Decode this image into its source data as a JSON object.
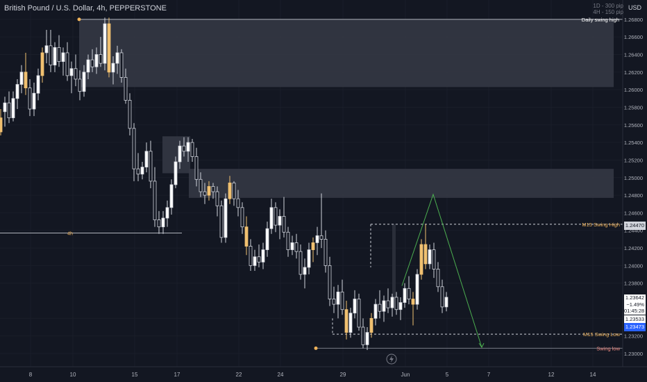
{
  "title": "British Pound / U.S. Dollar, 4h, PEPPERSTONE",
  "timeframe_note": {
    "daily": "1D - 300 pip",
    "h4": "4H - 150 pip"
  },
  "currency": "USD",
  "price_box": {
    "price": "1.23642",
    "change": "−1.49%",
    "countdown": "01:45:28"
  },
  "tags": {
    "m15_high": "1.24470",
    "low_value": "1.23533",
    "blue": "1.23473"
  },
  "colors": {
    "background": "#131722",
    "bull_candle": "#ffffff",
    "bear_candle": "#131722",
    "highlight_candle": "#f0c070",
    "zone": "#363a45",
    "projection": "#4caf50",
    "blue_tag": "#2962ff",
    "orange_label": "#f0b35a"
  },
  "chart_data": {
    "type": "candlestick",
    "y_axis": {
      "min": 1.2285,
      "max": 1.2702,
      "ticks": [
        "1.26800",
        "1.26600",
        "1.26400",
        "1.26200",
        "1.26000",
        "1.25800",
        "1.25600",
        "1.25400",
        "1.25200",
        "1.25000",
        "1.24800",
        "1.24600",
        "1.24400",
        "1.24200",
        "1.24000",
        "1.23800",
        "1.23400",
        "1.23200",
        "1.23000"
      ]
    },
    "x_axis": {
      "ticks": [
        "8",
        "10",
        "15",
        "17",
        "22",
        "24",
        "29",
        "Jun",
        "5",
        "7",
        "12",
        "14"
      ]
    },
    "annotations": {
      "daily_swing_high": {
        "label": "Daily swing high",
        "price": 1.268
      },
      "m15_swing_high": {
        "label": "M15 Swing High",
        "price": 1.2447
      },
      "m15_swing_low": {
        "label": "M15 Swing Low",
        "price": 1.2322
      },
      "swing_low": {
        "label": "Swing low",
        "price": 1.2306
      },
      "h4_level": {
        "label": "4h",
        "price": 1.2437
      }
    },
    "zones": [
      {
        "name": "supply-zone-upper",
        "top": 1.268,
        "bottom": 1.2603
      },
      {
        "name": "supply-zone-lower",
        "top": 1.251,
        "bottom": 1.2477
      },
      {
        "name": "order-block",
        "top": 1.2547,
        "bottom": 1.2505
      }
    ],
    "projection": {
      "points": [
        1.2377,
        1.2481,
        1.2307
      ]
    },
    "candles": [
      [
        1.2568,
        1.2578,
        1.2548,
        1.2552
      ],
      [
        1.2575,
        1.2592,
        1.2558,
        1.2585
      ],
      [
        1.2585,
        1.2598,
        1.2562,
        1.2568
      ],
      [
        1.2568,
        1.2598,
        1.2564,
        1.259
      ],
      [
        1.259,
        1.2612,
        1.2578,
        1.2606
      ],
      [
        1.2606,
        1.2628,
        1.2596,
        1.262
      ],
      [
        1.262,
        1.2642,
        1.2594,
        1.2602
      ],
      [
        1.2602,
        1.2612,
        1.257,
        1.2578
      ],
      [
        1.2578,
        1.2608,
        1.257,
        1.2596
      ],
      [
        1.2596,
        1.2624,
        1.2588,
        1.2616
      ],
      [
        1.2616,
        1.2648,
        1.2608,
        1.2642
      ],
      [
        1.2642,
        1.2668,
        1.263,
        1.265
      ],
      [
        1.265,
        1.2668,
        1.262,
        1.2628
      ],
      [
        1.2628,
        1.2654,
        1.262,
        1.2648
      ],
      [
        1.2648,
        1.2662,
        1.2626,
        1.2632
      ],
      [
        1.2632,
        1.2648,
        1.2616,
        1.2642
      ],
      [
        1.2642,
        1.2654,
        1.261,
        1.2616
      ],
      [
        1.2616,
        1.2632,
        1.2596,
        1.2624
      ],
      [
        1.2624,
        1.264,
        1.2604,
        1.2612
      ],
      [
        1.2612,
        1.2622,
        1.2588,
        1.2598
      ],
      [
        1.2598,
        1.2628,
        1.2592,
        1.262
      ],
      [
        1.262,
        1.264,
        1.2612,
        1.2634
      ],
      [
        1.2634,
        1.2646,
        1.262,
        1.2626
      ],
      [
        1.2626,
        1.2648,
        1.2618,
        1.264
      ],
      [
        1.264,
        1.266,
        1.2626,
        1.263
      ],
      [
        1.263,
        1.2682,
        1.2622,
        1.2675
      ],
      [
        1.2675,
        1.2682,
        1.2614,
        1.262
      ],
      [
        1.262,
        1.2638,
        1.2606,
        1.263
      ],
      [
        1.263,
        1.265,
        1.2618,
        1.2642
      ],
      [
        1.2642,
        1.2646,
        1.2608,
        1.2614
      ],
      [
        1.2614,
        1.2624,
        1.2584,
        1.2588
      ],
      [
        1.2588,
        1.2596,
        1.2548,
        1.2556
      ],
      [
        1.2556,
        1.2562,
        1.2496,
        1.251
      ],
      [
        1.251,
        1.2528,
        1.2496,
        1.2504
      ],
      [
        1.2504,
        1.2518,
        1.2498,
        1.2512
      ],
      [
        1.2512,
        1.254,
        1.2506,
        1.253
      ],
      [
        1.253,
        1.2542,
        1.2488,
        1.2496
      ],
      [
        1.2496,
        1.2512,
        1.2444,
        1.2452
      ],
      [
        1.2452,
        1.2462,
        1.2436,
        1.2444
      ],
      [
        1.2444,
        1.2462,
        1.2436,
        1.2454
      ],
      [
        1.2454,
        1.2474,
        1.2444,
        1.2466
      ],
      [
        1.2466,
        1.2498,
        1.2458,
        1.2492
      ],
      [
        1.2492,
        1.2524,
        1.2488,
        1.2518
      ],
      [
        1.2518,
        1.2542,
        1.251,
        1.2536
      ],
      [
        1.2536,
        1.2546,
        1.2524,
        1.253
      ],
      [
        1.253,
        1.2546,
        1.2518,
        1.254
      ],
      [
        1.254,
        1.2544,
        1.2518,
        1.2524
      ],
      [
        1.2524,
        1.2534,
        1.249,
        1.2498
      ],
      [
        1.2498,
        1.2506,
        1.2478,
        1.2484
      ],
      [
        1.2484,
        1.2494,
        1.247,
        1.248
      ],
      [
        1.248,
        1.2496,
        1.2474,
        1.249
      ],
      [
        1.249,
        1.2494,
        1.2476,
        1.2484
      ],
      [
        1.2484,
        1.249,
        1.2456,
        1.2468
      ],
      [
        1.2468,
        1.2474,
        1.2426,
        1.2432
      ],
      [
        1.2432,
        1.2482,
        1.2426,
        1.2476
      ],
      [
        1.2476,
        1.2502,
        1.247,
        1.2494
      ],
      [
        1.2494,
        1.2496,
        1.2468,
        1.2476
      ],
      [
        1.2476,
        1.2486,
        1.2456,
        1.2466
      ],
      [
        1.2466,
        1.2472,
        1.2436,
        1.2444
      ],
      [
        1.2444,
        1.2456,
        1.2412,
        1.2422
      ],
      [
        1.2422,
        1.243,
        1.2394,
        1.24
      ],
      [
        1.24,
        1.2418,
        1.2394,
        1.241
      ],
      [
        1.241,
        1.2424,
        1.2398,
        1.2404
      ],
      [
        1.2404,
        1.2426,
        1.2396,
        1.2418
      ],
      [
        1.2418,
        1.245,
        1.241,
        1.2442
      ],
      [
        1.2442,
        1.2476,
        1.2436,
        1.2466
      ],
      [
        1.2466,
        1.2472,
        1.2438,
        1.2446
      ],
      [
        1.2446,
        1.2464,
        1.243,
        1.2456
      ],
      [
        1.2456,
        1.2478,
        1.2432,
        1.2438
      ],
      [
        1.2438,
        1.2444,
        1.241,
        1.2418
      ],
      [
        1.2418,
        1.2434,
        1.2412,
        1.2426
      ],
      [
        1.2426,
        1.2436,
        1.2408,
        1.2416
      ],
      [
        1.2416,
        1.2424,
        1.2384,
        1.239
      ],
      [
        1.239,
        1.2408,
        1.2374,
        1.2398
      ],
      [
        1.2398,
        1.2426,
        1.239,
        1.2418
      ],
      [
        1.2418,
        1.2432,
        1.2404,
        1.2426
      ],
      [
        1.2426,
        1.2444,
        1.2412,
        1.2434
      ],
      [
        1.2434,
        1.2482,
        1.242,
        1.243
      ],
      [
        1.243,
        1.244,
        1.2392,
        1.24
      ],
      [
        1.24,
        1.241,
        1.2354,
        1.2362
      ],
      [
        1.2362,
        1.2376,
        1.2346,
        1.2356
      ],
      [
        1.2356,
        1.2378,
        1.234,
        1.237
      ],
      [
        1.237,
        1.2384,
        1.2344,
        1.235
      ],
      [
        1.235,
        1.236,
        1.2316,
        1.2324
      ],
      [
        1.2324,
        1.2352,
        1.2318,
        1.2346
      ],
      [
        1.2346,
        1.2372,
        1.234,
        1.2362
      ],
      [
        1.2362,
        1.2368,
        1.2326,
        1.233
      ],
      [
        1.233,
        1.234,
        1.2306,
        1.231
      ],
      [
        1.231,
        1.233,
        1.2304,
        1.2324
      ],
      [
        1.2324,
        1.2346,
        1.2318,
        1.234
      ],
      [
        1.234,
        1.2362,
        1.2332,
        1.2356
      ],
      [
        1.2356,
        1.2372,
        1.234,
        1.2348
      ],
      [
        1.2348,
        1.2366,
        1.2336,
        1.236
      ],
      [
        1.236,
        1.2374,
        1.2346,
        1.2352
      ],
      [
        1.2352,
        1.2368,
        1.2342,
        1.2364
      ],
      [
        1.2364,
        1.237,
        1.2344,
        1.235
      ],
      [
        1.235,
        1.2364,
        1.2338,
        1.2358
      ],
      [
        1.2358,
        1.238,
        1.2352,
        1.2374
      ],
      [
        1.2374,
        1.2388,
        1.2356,
        1.2362
      ],
      [
        1.2362,
        1.237,
        1.2332,
        1.2356
      ],
      [
        1.2356,
        1.2396,
        1.235,
        1.239
      ],
      [
        1.239,
        1.243,
        1.2384,
        1.2424
      ],
      [
        1.2424,
        1.2447,
        1.2396,
        1.2402
      ],
      [
        1.2402,
        1.2424,
        1.2396,
        1.2418
      ],
      [
        1.2418,
        1.2426,
        1.2386,
        1.2396
      ],
      [
        1.2396,
        1.2404,
        1.237,
        1.2376
      ],
      [
        1.2376,
        1.2384,
        1.2346,
        1.2353
      ],
      [
        1.2353,
        1.237,
        1.2348,
        1.2364
      ]
    ]
  },
  "hl_idx": [
    0,
    6,
    10,
    26,
    50,
    55,
    59,
    75,
    83,
    89,
    99,
    101,
    102
  ]
}
